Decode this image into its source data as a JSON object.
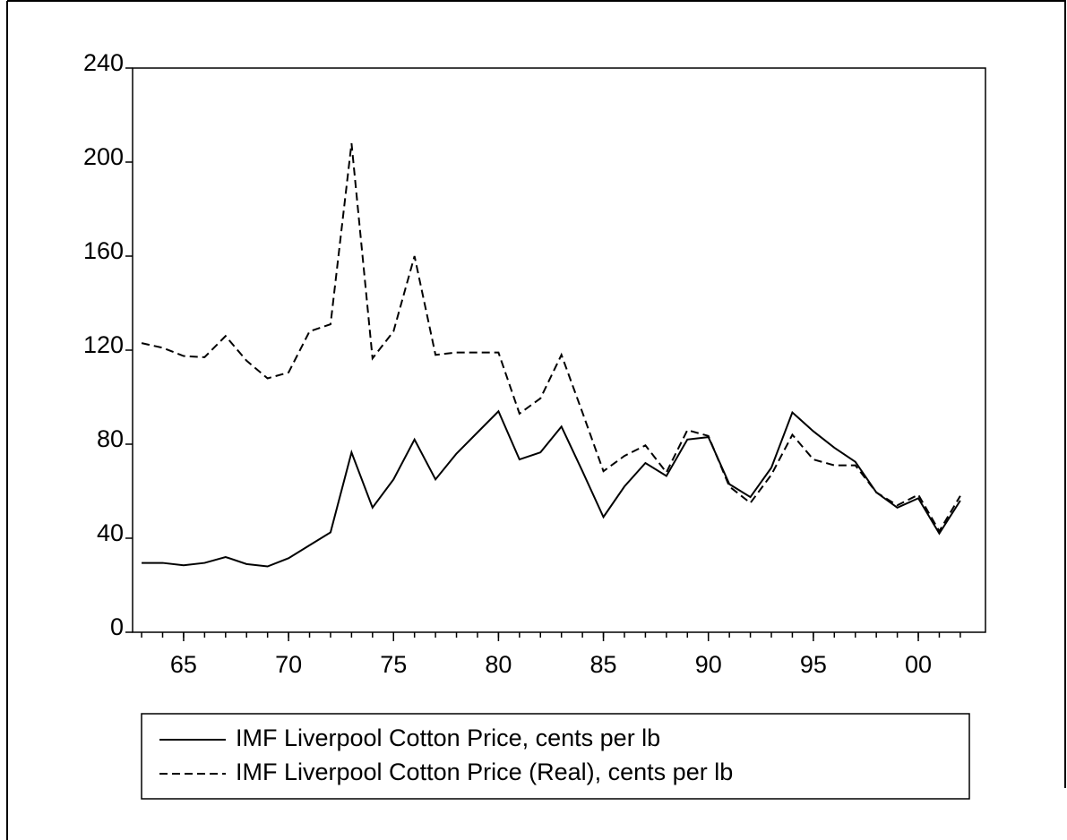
{
  "chart_data": {
    "type": "line",
    "x": [
      1963,
      1964,
      1965,
      1966,
      1967,
      1968,
      1969,
      1970,
      1971,
      1972,
      1973,
      1974,
      1975,
      1976,
      1977,
      1978,
      1979,
      1980,
      1981,
      1982,
      1983,
      1984,
      1985,
      1986,
      1987,
      1988,
      1989,
      1990,
      1991,
      1992,
      1993,
      1994,
      1995,
      1996,
      1997,
      1998,
      1999,
      2000,
      2001,
      2002
    ],
    "series": [
      {
        "name": "IMF Liverpool Cotton Price, cents per lb",
        "color": "#000000",
        "line_style": "solid",
        "values": [
          29.5,
          29.5,
          28.5,
          29.5,
          32,
          29,
          28,
          31.5,
          37,
          42.5,
          76.5,
          53,
          65,
          82,
          65,
          76,
          85,
          94,
          73.5,
          76.5,
          87.5,
          68.5,
          49,
          62,
          72,
          66.5,
          82,
          83,
          63,
          57.5,
          70,
          93.5,
          85.5,
          78.5,
          72.5,
          59.5,
          53,
          57,
          42,
          56
        ]
      },
      {
        "name": "IMF Liverpool Cotton Price (Real), cents per lb",
        "color": "#000000",
        "line_style": "dashed",
        "values": [
          123,
          121,
          117.5,
          117,
          126,
          115.5,
          108,
          110.5,
          128,
          131,
          208,
          116.5,
          128,
          160,
          118,
          119,
          119,
          119,
          93,
          99.5,
          118,
          93.5,
          68.5,
          75,
          79.5,
          68,
          86,
          83.5,
          62,
          55,
          67,
          84,
          73.5,
          71,
          71,
          59.5,
          54,
          58.5,
          43,
          58
        ]
      }
    ],
    "xlim": [
      1962.57,
      2003.2
    ],
    "xticks": [
      {
        "value": 1965,
        "label": "65"
      },
      {
        "value": 1970,
        "label": "70"
      },
      {
        "value": 1975,
        "label": "75"
      },
      {
        "value": 1980,
        "label": "80"
      },
      {
        "value": 1985,
        "label": "85"
      },
      {
        "value": 1990,
        "label": "90"
      },
      {
        "value": 1995,
        "label": "95"
      },
      {
        "value": 2000,
        "label": "00"
      }
    ],
    "ylim": [
      0,
      240
    ],
    "yticks": [
      0,
      40,
      80,
      120,
      160,
      200,
      240
    ],
    "grid": false,
    "legend": "bottom"
  }
}
